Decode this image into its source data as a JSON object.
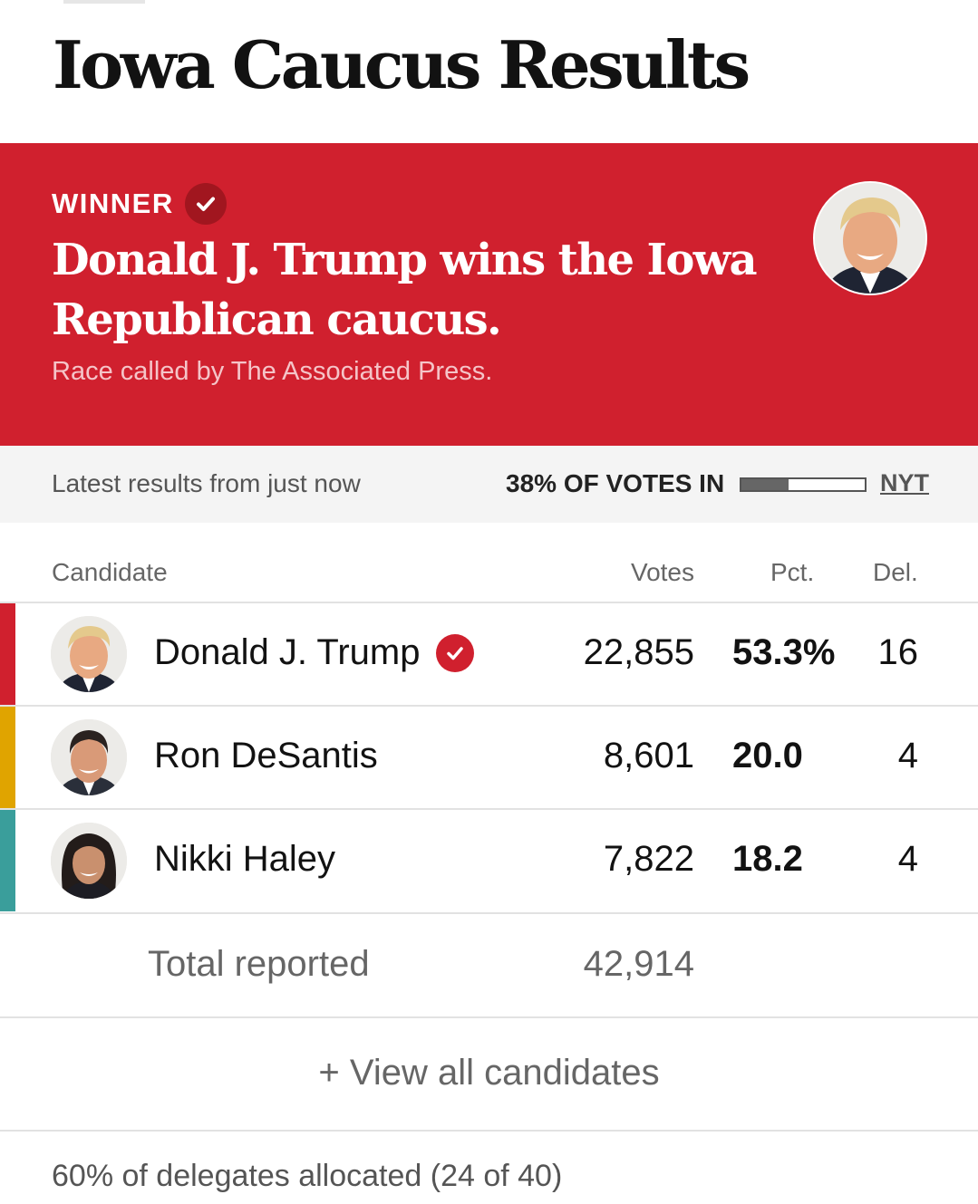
{
  "page": {
    "title": "Iowa Caucus Results"
  },
  "banner": {
    "winner_label": "WINNER",
    "headline": "Donald J. Trump wins the Iowa Republican caucus.",
    "subtext": "Race called by The Associated Press.",
    "background_color": "#d0202e"
  },
  "status": {
    "updated_text": "Latest results from just now",
    "votes_in_label": "38% OF VOTES IN",
    "votes_in_fraction": 0.38,
    "source_link": "NYT"
  },
  "table": {
    "headers": {
      "candidate": "Candidate",
      "votes": "Votes",
      "pct": "Pct.",
      "del": "Del."
    },
    "rows": [
      {
        "name": "Donald J. Trump",
        "votes": "22,855",
        "pct": "53.3%",
        "del": "16",
        "winner": true,
        "color": "#d0202e",
        "avatar_icon": "candidate-portrait-icon"
      },
      {
        "name": "Ron DeSantis",
        "votes": "8,601",
        "pct": "20.0",
        "del": "4",
        "winner": false,
        "color": "#e0a400",
        "avatar_icon": "candidate-portrait-icon"
      },
      {
        "name": "Nikki Haley",
        "votes": "7,822",
        "pct": "18.2",
        "del": "4",
        "winner": false,
        "color": "#3a9e9b",
        "avatar_icon": "candidate-portrait-icon"
      }
    ],
    "total": {
      "label": "Total reported",
      "votes": "42,914"
    }
  },
  "view_all": {
    "label": "+ View all candidates"
  },
  "footer": {
    "delegates_note": "60% of delegates allocated (24 of 40)"
  }
}
